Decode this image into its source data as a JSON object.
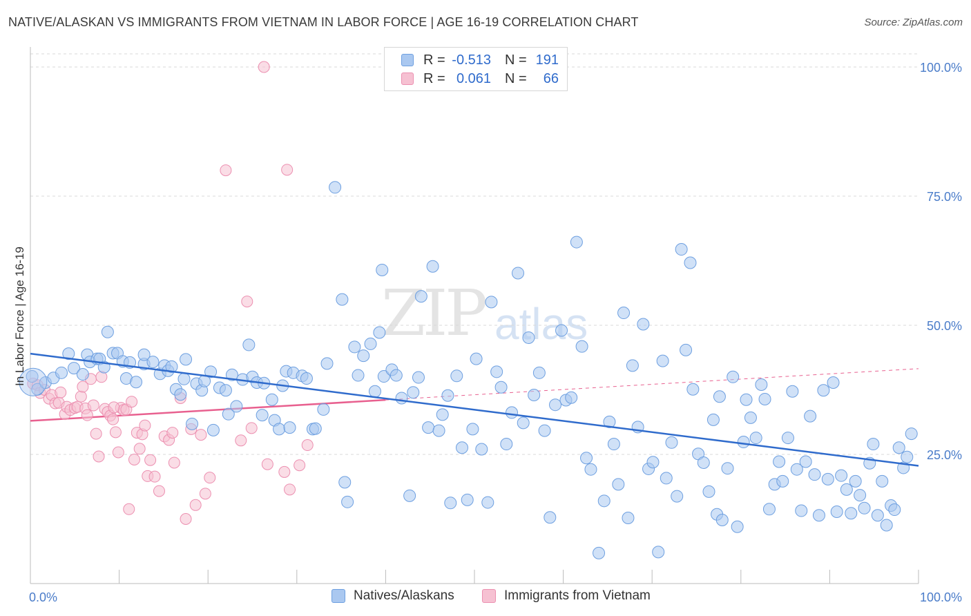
{
  "title": "NATIVE/ALASKAN VS IMMIGRANTS FROM VIETNAM IN LABOR FORCE | AGE 16-19 CORRELATION CHART",
  "source": "Source: ZipAtlas.com",
  "watermark": {
    "zip": "ZIP",
    "atlas": "atlas"
  },
  "colors": {
    "blue_fill": "#aac8f0",
    "blue_stroke": "#6d9fe0",
    "blue_line": "#2f6bcc",
    "pink_fill": "#f6c1d2",
    "pink_stroke": "#ec8fb0",
    "pink_line": "#e8608f",
    "grid": "#d9d9d9",
    "tick_text": "#4a7cc9"
  },
  "legend": {
    "rows": [
      {
        "r_label": "R =",
        "r_value": "-0.513",
        "n_label": "N =",
        "n_value": "191",
        "color": "blue"
      },
      {
        "r_label": "R =",
        "r_value": "0.061",
        "n_label": "N =",
        "n_value": "66",
        "color": "pink"
      }
    ]
  },
  "bottom_legend": {
    "series_a": "Natives/Alaskans",
    "series_b": "Immigrants from Vietnam"
  },
  "chart_data": {
    "type": "scatter",
    "title": "NATIVE/ALASKAN VS IMMIGRANTS FROM VIETNAM IN LABOR FORCE | AGE 16-19 CORRELATION CHART",
    "xlabel": "",
    "ylabel": "In Labor Force | Age 16-19",
    "xlim": [
      0,
      100
    ],
    "ylim": [
      0,
      102
    ],
    "x_tick_labels": [
      {
        "value": 0,
        "label": "0.0%"
      },
      {
        "value": 100,
        "label": "100.0%"
      }
    ],
    "y_tick_labels": [
      {
        "value": 25,
        "label": "25.0%"
      },
      {
        "value": 50,
        "label": "50.0%"
      },
      {
        "value": 75,
        "label": "75.0%"
      },
      {
        "value": 100,
        "label": "100.0%"
      }
    ],
    "grid": "horizontal dashed",
    "legend_placement": "top-center",
    "series": [
      {
        "name": "Natives/Alaskans",
        "color": "#aac8f0",
        "r": -0.513,
        "n": 191,
        "trend": {
          "x": [
            0,
            100
          ],
          "y": [
            44.5,
            22.8
          ]
        },
        "points": [
          [
            0.2,
            40.1
          ],
          [
            0.8,
            37.6
          ],
          [
            1.7,
            38.9
          ],
          [
            2.6,
            39.8
          ],
          [
            3.5,
            40.8
          ],
          [
            4.3,
            44.5
          ],
          [
            4.9,
            41.7
          ],
          [
            5.9,
            40.5
          ],
          [
            6.4,
            44.3
          ],
          [
            6.7,
            42.9
          ],
          [
            7.5,
            43.5
          ],
          [
            7.8,
            43.5
          ],
          [
            8.3,
            41.9
          ],
          [
            8.7,
            48.7
          ],
          [
            9.3,
            44.6
          ],
          [
            9.8,
            44.6
          ],
          [
            10.4,
            43.0
          ],
          [
            10.8,
            39.7
          ],
          [
            11.2,
            42.8
          ],
          [
            11.9,
            39.0
          ],
          [
            12.8,
            42.5
          ],
          [
            12.8,
            44.3
          ],
          [
            13.8,
            42.9
          ],
          [
            14.6,
            40.6
          ],
          [
            15.1,
            42.2
          ],
          [
            15.5,
            41.2
          ],
          [
            15.9,
            42.0
          ],
          [
            16.4,
            37.6
          ],
          [
            16.9,
            36.6
          ],
          [
            17.3,
            39.6
          ],
          [
            17.5,
            43.4
          ],
          [
            18.2,
            30.9
          ],
          [
            18.7,
            38.7
          ],
          [
            19.3,
            37.4
          ],
          [
            19.6,
            39.2
          ],
          [
            20.3,
            41.0
          ],
          [
            20.6,
            29.7
          ],
          [
            21.3,
            37.9
          ],
          [
            22.0,
            37.4
          ],
          [
            22.3,
            32.8
          ],
          [
            22.7,
            40.4
          ],
          [
            23.2,
            34.3
          ],
          [
            23.9,
            39.5
          ],
          [
            24.6,
            46.2
          ],
          [
            25.0,
            40.0
          ],
          [
            25.5,
            38.9
          ],
          [
            26.1,
            32.6
          ],
          [
            26.3,
            38.8
          ],
          [
            27.2,
            35.6
          ],
          [
            27.5,
            31.6
          ],
          [
            28.0,
            29.9
          ],
          [
            28.4,
            38.3
          ],
          [
            28.8,
            41.1
          ],
          [
            29.2,
            30.2
          ],
          [
            29.6,
            40.8
          ],
          [
            30.6,
            40.2
          ],
          [
            31.1,
            39.7
          ],
          [
            31.8,
            29.9
          ],
          [
            32.1,
            30.0
          ],
          [
            33.0,
            33.7
          ],
          [
            33.4,
            42.6
          ],
          [
            34.3,
            76.7
          ],
          [
            35.1,
            55.0
          ],
          [
            35.4,
            19.6
          ],
          [
            35.7,
            15.8
          ],
          [
            36.5,
            45.8
          ],
          [
            36.9,
            40.3
          ],
          [
            37.5,
            44.1
          ],
          [
            38.3,
            46.4
          ],
          [
            38.8,
            37.2
          ],
          [
            39.3,
            48.6
          ],
          [
            39.6,
            60.7
          ],
          [
            39.8,
            40.1
          ],
          [
            40.7,
            41.4
          ],
          [
            41.2,
            40.3
          ],
          [
            41.8,
            35.9
          ],
          [
            42.7,
            17.0
          ],
          [
            43.1,
            37.0
          ],
          [
            43.7,
            39.9
          ],
          [
            44.0,
            55.6
          ],
          [
            44.8,
            30.2
          ],
          [
            45.3,
            61.4
          ],
          [
            46.0,
            29.6
          ],
          [
            46.4,
            32.7
          ],
          [
            47.0,
            36.4
          ],
          [
            47.3,
            15.6
          ],
          [
            48.0,
            40.2
          ],
          [
            48.6,
            26.3
          ],
          [
            49.2,
            16.2
          ],
          [
            49.8,
            29.9
          ],
          [
            50.2,
            43.5
          ],
          [
            50.8,
            26.0
          ],
          [
            51.5,
            15.7
          ],
          [
            51.9,
            54.5
          ],
          [
            52.5,
            41.0
          ],
          [
            53.0,
            38.0
          ],
          [
            53.6,
            27.0
          ],
          [
            54.2,
            33.1
          ],
          [
            54.9,
            60.1
          ],
          [
            55.5,
            31.1
          ],
          [
            56.1,
            47.6
          ],
          [
            56.7,
            36.5
          ],
          [
            57.3,
            40.8
          ],
          [
            57.9,
            29.6
          ],
          [
            58.5,
            12.8
          ],
          [
            59.1,
            34.6
          ],
          [
            59.8,
            49.0
          ],
          [
            60.3,
            35.5
          ],
          [
            60.9,
            36.0
          ],
          [
            61.5,
            66.1
          ],
          [
            62.1,
            45.9
          ],
          [
            62.6,
            24.3
          ],
          [
            63.1,
            22.1
          ],
          [
            64.0,
            5.9
          ],
          [
            64.6,
            16.0
          ],
          [
            65.2,
            31.3
          ],
          [
            65.7,
            27.0
          ],
          [
            66.2,
            19.2
          ],
          [
            66.8,
            52.4
          ],
          [
            67.3,
            12.7
          ],
          [
            67.8,
            42.2
          ],
          [
            68.4,
            30.3
          ],
          [
            69.0,
            50.2
          ],
          [
            69.6,
            22.2
          ],
          [
            70.1,
            23.5
          ],
          [
            70.7,
            6.1
          ],
          [
            71.2,
            43.1
          ],
          [
            71.6,
            20.4
          ],
          [
            72.2,
            27.3
          ],
          [
            72.8,
            16.9
          ],
          [
            73.3,
            64.7
          ],
          [
            73.8,
            45.2
          ],
          [
            74.3,
            62.1
          ],
          [
            74.6,
            37.6
          ],
          [
            75.2,
            25.1
          ],
          [
            75.8,
            23.4
          ],
          [
            76.4,
            17.8
          ],
          [
            76.9,
            31.7
          ],
          [
            77.3,
            13.4
          ],
          [
            77.6,
            36.2
          ],
          [
            77.9,
            12.3
          ],
          [
            78.5,
            22.3
          ],
          [
            79.1,
            40.0
          ],
          [
            79.6,
            11.0
          ],
          [
            80.3,
            27.4
          ],
          [
            80.6,
            35.6
          ],
          [
            81.1,
            32.1
          ],
          [
            81.7,
            28.2
          ],
          [
            82.3,
            38.5
          ],
          [
            82.7,
            35.7
          ],
          [
            83.2,
            14.4
          ],
          [
            83.8,
            19.2
          ],
          [
            84.3,
            23.6
          ],
          [
            84.7,
            19.8
          ],
          [
            85.3,
            28.2
          ],
          [
            85.8,
            37.2
          ],
          [
            86.3,
            22.1
          ],
          [
            86.8,
            14.1
          ],
          [
            87.3,
            23.6
          ],
          [
            87.8,
            32.4
          ],
          [
            88.3,
            21.1
          ],
          [
            88.8,
            13.2
          ],
          [
            89.3,
            37.4
          ],
          [
            89.8,
            20.2
          ],
          [
            90.4,
            38.9
          ],
          [
            90.8,
            13.9
          ],
          [
            91.3,
            20.9
          ],
          [
            91.9,
            18.2
          ],
          [
            92.4,
            13.6
          ],
          [
            92.9,
            19.8
          ],
          [
            93.4,
            17.1
          ],
          [
            93.9,
            14.6
          ],
          [
            94.5,
            23.3
          ],
          [
            94.9,
            27.0
          ],
          [
            95.4,
            13.2
          ],
          [
            95.9,
            19.8
          ],
          [
            96.4,
            11.3
          ],
          [
            96.9,
            15.1
          ],
          [
            97.3,
            14.3
          ],
          [
            97.8,
            26.3
          ],
          [
            98.3,
            22.4
          ],
          [
            98.7,
            24.5
          ],
          [
            99.2,
            29.0
          ]
        ]
      },
      {
        "name": "Immigrants from Vietnam",
        "color": "#f6c1d2",
        "r": 0.061,
        "n": 66,
        "trend": {
          "x": [
            0,
            100
          ],
          "y": [
            31.5,
            41.6
          ]
        },
        "points": [
          [
            0.3,
            38.7
          ],
          [
            0.8,
            38.4
          ],
          [
            1.1,
            36.9
          ],
          [
            1.6,
            37.5
          ],
          [
            2.1,
            35.8
          ],
          [
            2.4,
            36.5
          ],
          [
            2.8,
            34.9
          ],
          [
            3.2,
            35.0
          ],
          [
            3.4,
            37.0
          ],
          [
            3.9,
            32.8
          ],
          [
            4.1,
            34.2
          ],
          [
            4.5,
            33.6
          ],
          [
            5.0,
            34.0
          ],
          [
            5.3,
            34.2
          ],
          [
            5.7,
            36.2
          ],
          [
            5.9,
            38.1
          ],
          [
            6.2,
            33.9
          ],
          [
            6.4,
            32.6
          ],
          [
            6.8,
            39.6
          ],
          [
            7.1,
            34.5
          ],
          [
            7.4,
            29.0
          ],
          [
            7.7,
            24.6
          ],
          [
            8.0,
            40.0
          ],
          [
            8.4,
            33.8
          ],
          [
            8.7,
            33.2
          ],
          [
            9.0,
            32.5
          ],
          [
            9.3,
            31.8
          ],
          [
            9.6,
            29.3
          ],
          [
            9.9,
            25.4
          ],
          [
            10.2,
            34.0
          ],
          [
            10.5,
            33.6
          ],
          [
            10.8,
            33.7
          ],
          [
            11.1,
            14.4
          ],
          [
            11.4,
            35.2
          ],
          [
            11.7,
            24.0
          ],
          [
            12.0,
            29.2
          ],
          [
            12.3,
            26.1
          ],
          [
            12.6,
            28.9
          ],
          [
            12.9,
            30.6
          ],
          [
            13.2,
            20.8
          ],
          [
            13.5,
            23.9
          ],
          [
            14.0,
            20.7
          ],
          [
            14.5,
            17.9
          ],
          [
            15.1,
            28.5
          ],
          [
            15.6,
            27.8
          ],
          [
            16.0,
            29.2
          ],
          [
            16.2,
            23.4
          ],
          [
            16.9,
            35.9
          ],
          [
            17.5,
            12.5
          ],
          [
            18.1,
            29.9
          ],
          [
            18.6,
            15.2
          ],
          [
            19.2,
            28.8
          ],
          [
            19.7,
            17.4
          ],
          [
            20.2,
            20.5
          ],
          [
            22.0,
            80.0
          ],
          [
            23.7,
            27.7
          ],
          [
            24.4,
            54.6
          ],
          [
            24.9,
            30.1
          ],
          [
            26.7,
            23.1
          ],
          [
            28.6,
            21.6
          ],
          [
            28.9,
            80.1
          ],
          [
            29.2,
            18.2
          ],
          [
            30.3,
            22.9
          ],
          [
            31.2,
            26.8
          ],
          [
            26.3,
            100.0
          ],
          [
            9.4,
            34.1
          ]
        ]
      }
    ]
  }
}
